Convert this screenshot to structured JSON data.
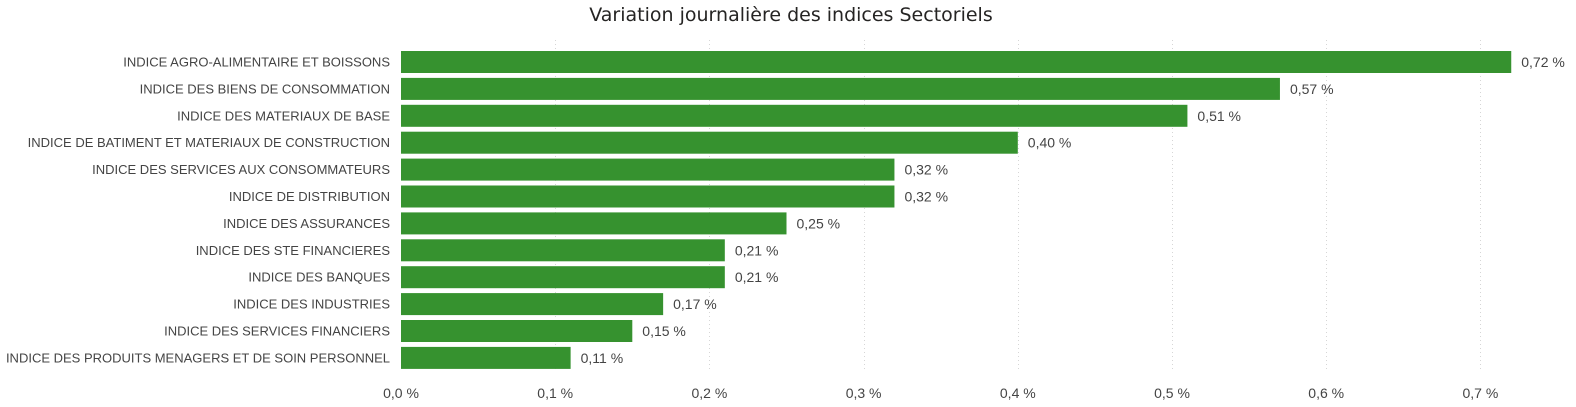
{
  "chart_data": {
    "type": "bar",
    "orientation": "horizontal",
    "title": "Variation journalière des indices Sectoriels",
    "xlabel": "",
    "ylabel": "",
    "xlim": [
      0,
      0.75
    ],
    "grid": true,
    "bar_color": "#36922f",
    "categories": [
      "INDICE AGRO-ALIMENTAIRE ET BOISSONS",
      "INDICE DES BIENS DE CONSOMMATION",
      "INDICE DES MATERIAUX DE BASE",
      "INDICE DE BATIMENT ET MATERIAUX DE CONSTRUCTION",
      "INDICE DES SERVICES AUX CONSOMMATEURS",
      "INDICE DE DISTRIBUTION",
      "INDICE DES ASSURANCES",
      "INDICE DES STE FINANCIERES",
      "INDICE DES BANQUES",
      "INDICE DES INDUSTRIES",
      "INDICE DES SERVICES FINANCIERS",
      "INDICE DES PRODUITS MENAGERS ET DE SOIN PERSONNEL"
    ],
    "values": [
      0.72,
      0.57,
      0.51,
      0.4,
      0.32,
      0.32,
      0.25,
      0.21,
      0.21,
      0.17,
      0.15,
      0.11
    ],
    "value_labels": [
      "0,72 %",
      "0,57 %",
      "0,51 %",
      "0,40 %",
      "0,32 %",
      "0,32 %",
      "0,25 %",
      "0,21 %",
      "0,21 %",
      "0,17 %",
      "0,15 %",
      "0,11 %"
    ],
    "x_ticks": [
      0,
      0.1,
      0.2,
      0.3,
      0.4,
      0.5,
      0.6,
      0.7
    ],
    "x_tick_labels": [
      "0,0 %",
      "0,1 %",
      "0,2 %",
      "0,3 %",
      "0,4 %",
      "0,5 %",
      "0,6 %",
      "0,7 %"
    ]
  }
}
